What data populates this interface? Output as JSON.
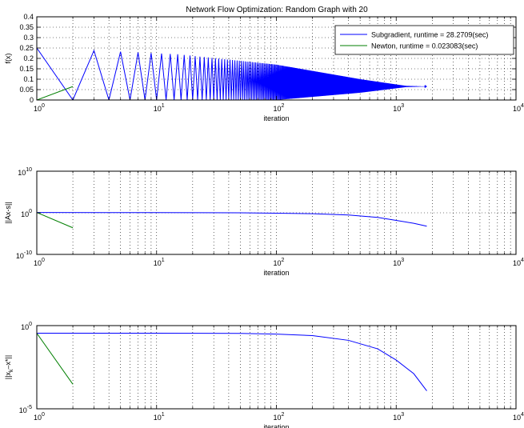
{
  "figure": {
    "title": "Network Flow Optimization: Random Graph with 20"
  },
  "chart_data": [
    {
      "type": "line",
      "title": "Network Flow Optimization: Random Graph with 20",
      "xlabel": "iteration",
      "ylabel": "f(x)",
      "xscale": "log",
      "yscale": "linear",
      "xlim": [
        1,
        10000
      ],
      "ylim": [
        0,
        0.4
      ],
      "xticks": [
        1,
        10,
        100,
        1000,
        10000
      ],
      "xtick_labels": [
        {
          "base": "10",
          "exp": "0"
        },
        {
          "base": "10",
          "exp": "1"
        },
        {
          "base": "10",
          "exp": "2"
        },
        {
          "base": "10",
          "exp": "3"
        },
        {
          "base": "10",
          "exp": "4"
        }
      ],
      "yticks": [
        0,
        0.05,
        0.1,
        0.15,
        0.2,
        0.25,
        0.3,
        0.35,
        0.4
      ],
      "ytick_labels": [
        "0",
        "0.05",
        "0.1",
        "0.15",
        "0.2",
        "0.25",
        "0.3",
        "0.35",
        "0.4"
      ],
      "grid": true,
      "legend": "top-right",
      "series": [
        {
          "name": "Subgradient, runtime = 28.2709(sec)",
          "color": "#0000ff",
          "oscillation": {
            "start_iter": 1,
            "end_iter": 1800,
            "max_start": 0.25,
            "min_start": 0.0,
            "converge_value": 0.065,
            "damping_start": 15,
            "damping_end": 1200
          },
          "x": [
            1,
            15,
            100,
            500,
            1200,
            1800
          ],
          "y_upper": [
            0.25,
            0.22,
            0.17,
            0.1,
            0.068,
            0.065
          ],
          "y_lower": [
            0.0,
            0.0,
            0.0,
            0.035,
            0.062,
            0.065
          ]
        },
        {
          "name": "Newton, runtime = 0.023083(sec)",
          "color": "#007f00",
          "x": [
            1,
            2
          ],
          "y": [
            0.0,
            0.065
          ]
        }
      ]
    },
    {
      "type": "line",
      "title": "",
      "xlabel": "iteration",
      "ylabel": "||Ax-s||",
      "xscale": "log",
      "yscale": "log",
      "xlim": [
        1,
        10000
      ],
      "ylim": [
        1e-10,
        10000000000.0
      ],
      "xticks": [
        1,
        10,
        100,
        1000,
        10000
      ],
      "xtick_labels": [
        {
          "base": "10",
          "exp": "0"
        },
        {
          "base": "10",
          "exp": "1"
        },
        {
          "base": "10",
          "exp": "2"
        },
        {
          "base": "10",
          "exp": "3"
        },
        {
          "base": "10",
          "exp": "4"
        }
      ],
      "yticks": [
        1e-10,
        1,
        10000000000.0
      ],
      "ytick_labels": [
        {
          "base": "10",
          "exp": "-10"
        },
        {
          "base": "10",
          "exp": "0"
        },
        {
          "base": "10",
          "exp": "10"
        }
      ],
      "grid": true,
      "series": [
        {
          "name": "Subgradient, runtime = 28.2709(sec)",
          "color": "#0000ff",
          "x": [
            1,
            10,
            50,
            100,
            200,
            400,
            700,
            1000,
            1400,
            1800
          ],
          "y": [
            1.2,
            1.1,
            1.0,
            0.8,
            0.6,
            0.3,
            0.08,
            0.015,
            0.003,
            0.0006
          ]
        },
        {
          "name": "Newton, runtime = 0.023083(sec)",
          "color": "#007f00",
          "x": [
            1,
            2
          ],
          "y": [
            1.2,
            0.00025
          ]
        }
      ]
    },
    {
      "type": "line",
      "title": "",
      "xlabel": "iteration",
      "ylabel": "||x_k - x*||",
      "ylabel_parts": {
        "prefix": "||x",
        "sub": "k",
        "suffix": "–x*||"
      },
      "xscale": "log",
      "yscale": "log",
      "xlim": [
        1,
        10000
      ],
      "ylim": [
        1e-05,
        1
      ],
      "xticks": [
        1,
        10,
        100,
        1000,
        10000
      ],
      "xtick_labels": [
        {
          "base": "10",
          "exp": "0"
        },
        {
          "base": "10",
          "exp": "1"
        },
        {
          "base": "10",
          "exp": "2"
        },
        {
          "base": "10",
          "exp": "3"
        },
        {
          "base": "10",
          "exp": "4"
        }
      ],
      "yticks": [
        1e-05,
        1
      ],
      "ytick_labels": [
        {
          "base": "10",
          "exp": "-5"
        },
        {
          "base": "10",
          "exp": "0"
        }
      ],
      "grid": true,
      "series": [
        {
          "name": "Subgradient, runtime = 28.2709(sec)",
          "color": "#0000ff",
          "x": [
            1,
            10,
            50,
            100,
            200,
            400,
            700,
            1000,
            1400,
            1800
          ],
          "y": [
            0.35,
            0.35,
            0.34,
            0.31,
            0.25,
            0.13,
            0.04,
            0.0085,
            0.0013,
            0.00012
          ]
        },
        {
          "name": "Newton, runtime = 0.023083(sec)",
          "color": "#007f00",
          "x": [
            1,
            2
          ],
          "y": [
            0.35,
            0.0003
          ]
        }
      ]
    }
  ]
}
